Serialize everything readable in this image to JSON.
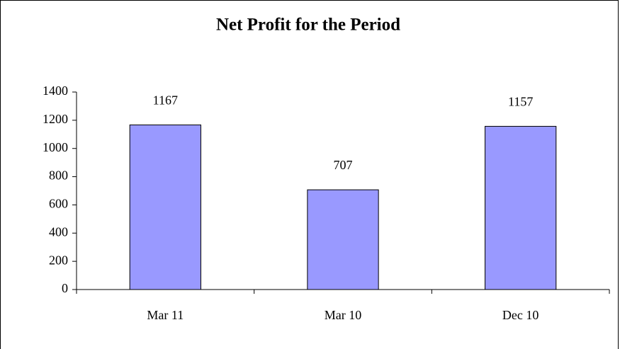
{
  "chart_data": {
    "type": "bar",
    "title": "Net Profit for the Period",
    "categories": [
      "Mar 11",
      "Mar 10",
      "Dec 10"
    ],
    "values": [
      1167,
      707,
      1157
    ],
    "color": "#9999ff",
    "ylim": [
      0,
      1400
    ],
    "yticks": [
      0,
      200,
      400,
      600,
      800,
      1000,
      1200,
      1400
    ],
    "grid": false
  }
}
